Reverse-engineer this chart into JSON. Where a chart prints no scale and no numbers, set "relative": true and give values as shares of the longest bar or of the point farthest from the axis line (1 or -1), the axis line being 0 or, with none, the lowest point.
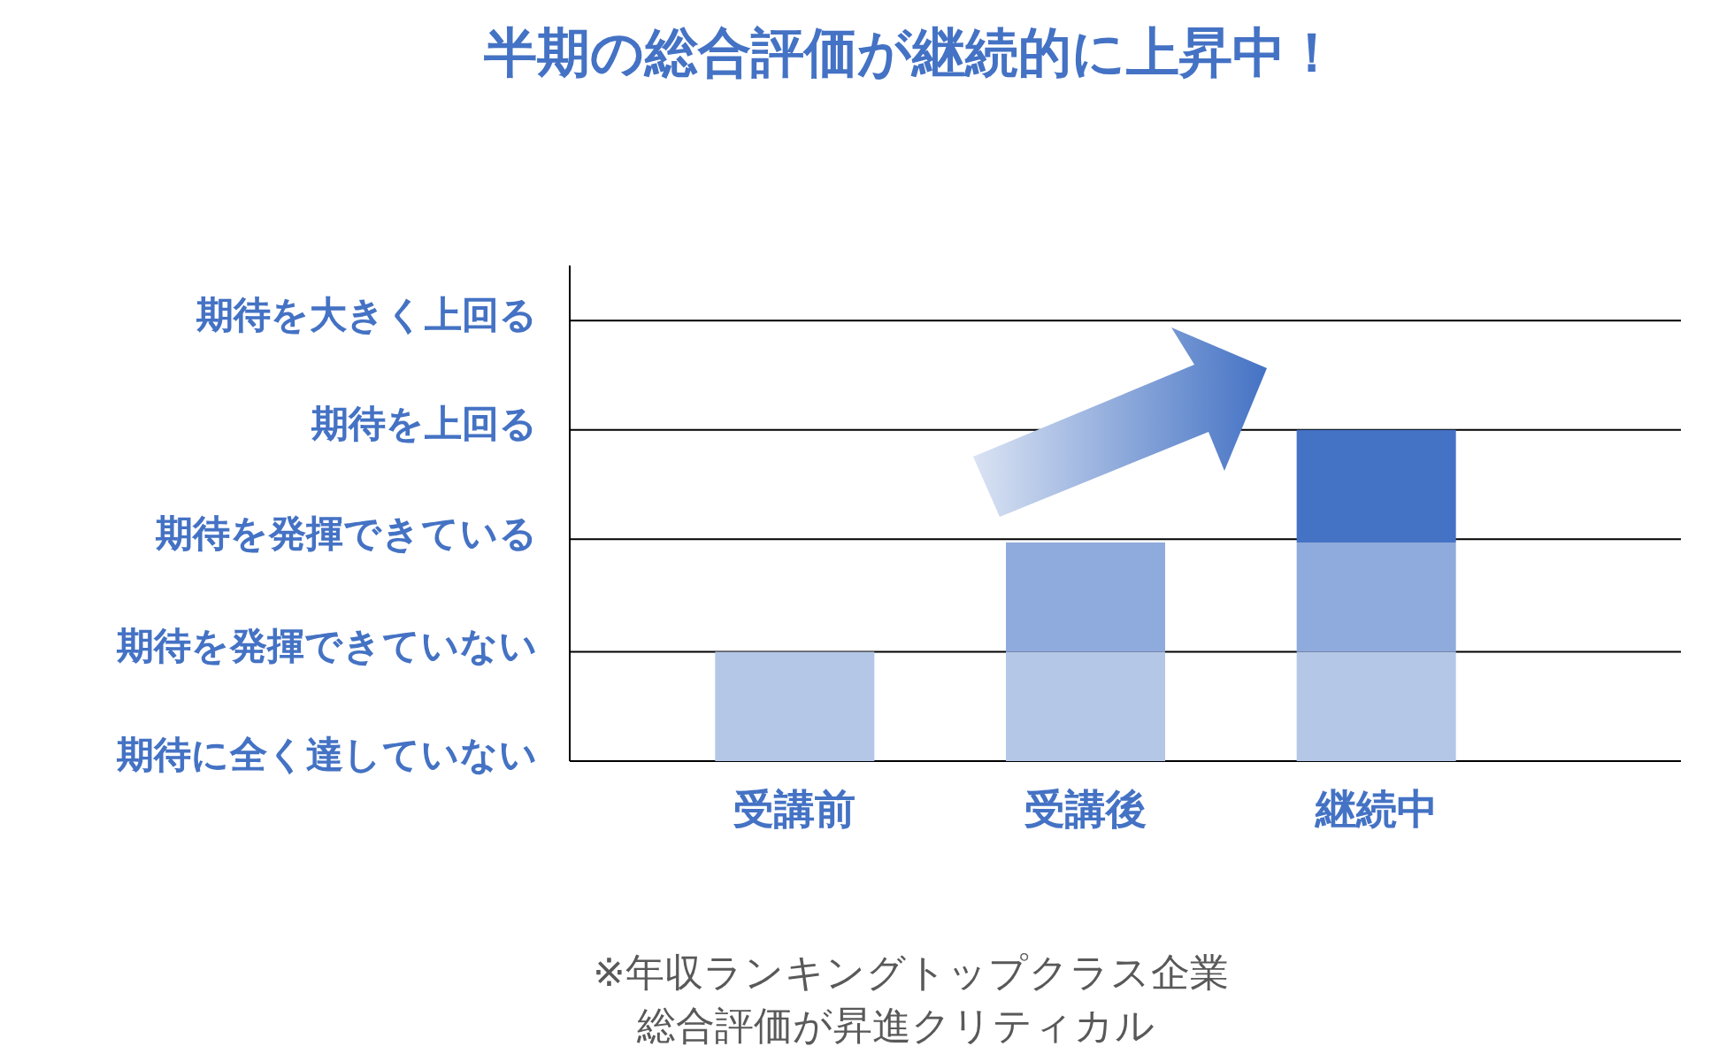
{
  "chart_data": {
    "type": "bar",
    "stacked": true,
    "relative": true,
    "title": "半期の総合評価が継続的に上昇中！",
    "categories": [
      "受講前",
      "受講後",
      "継続中"
    ],
    "series": [
      {
        "color": "#b4c7e7",
        "values": [
          0.33,
          0.33,
          0.33
        ]
      },
      {
        "color": "#8faadc",
        "values": [
          null,
          0.33,
          0.33
        ]
      },
      {
        "color": "#4472c4",
        "values": [
          null,
          null,
          0.34
        ]
      }
    ],
    "ref_lines": [
      {
        "axis": "y",
        "value": 0,
        "label": "期待に全く達していない"
      },
      {
        "axis": "y",
        "value": 0.33,
        "label": "期待を発揮できていない"
      },
      {
        "axis": "y",
        "value": 0.67,
        "label": "期待を発揮できている"
      },
      {
        "axis": "y",
        "value": 1,
        "label": "期待を上回る"
      },
      {
        "axis": "y",
        "value": 1.33,
        "label": "期待を大きく上回る"
      }
    ],
    "annotations": [
      "※年収ランキングトップクラス企業",
      "総合評価が昇進クリティカル"
    ]
  }
}
